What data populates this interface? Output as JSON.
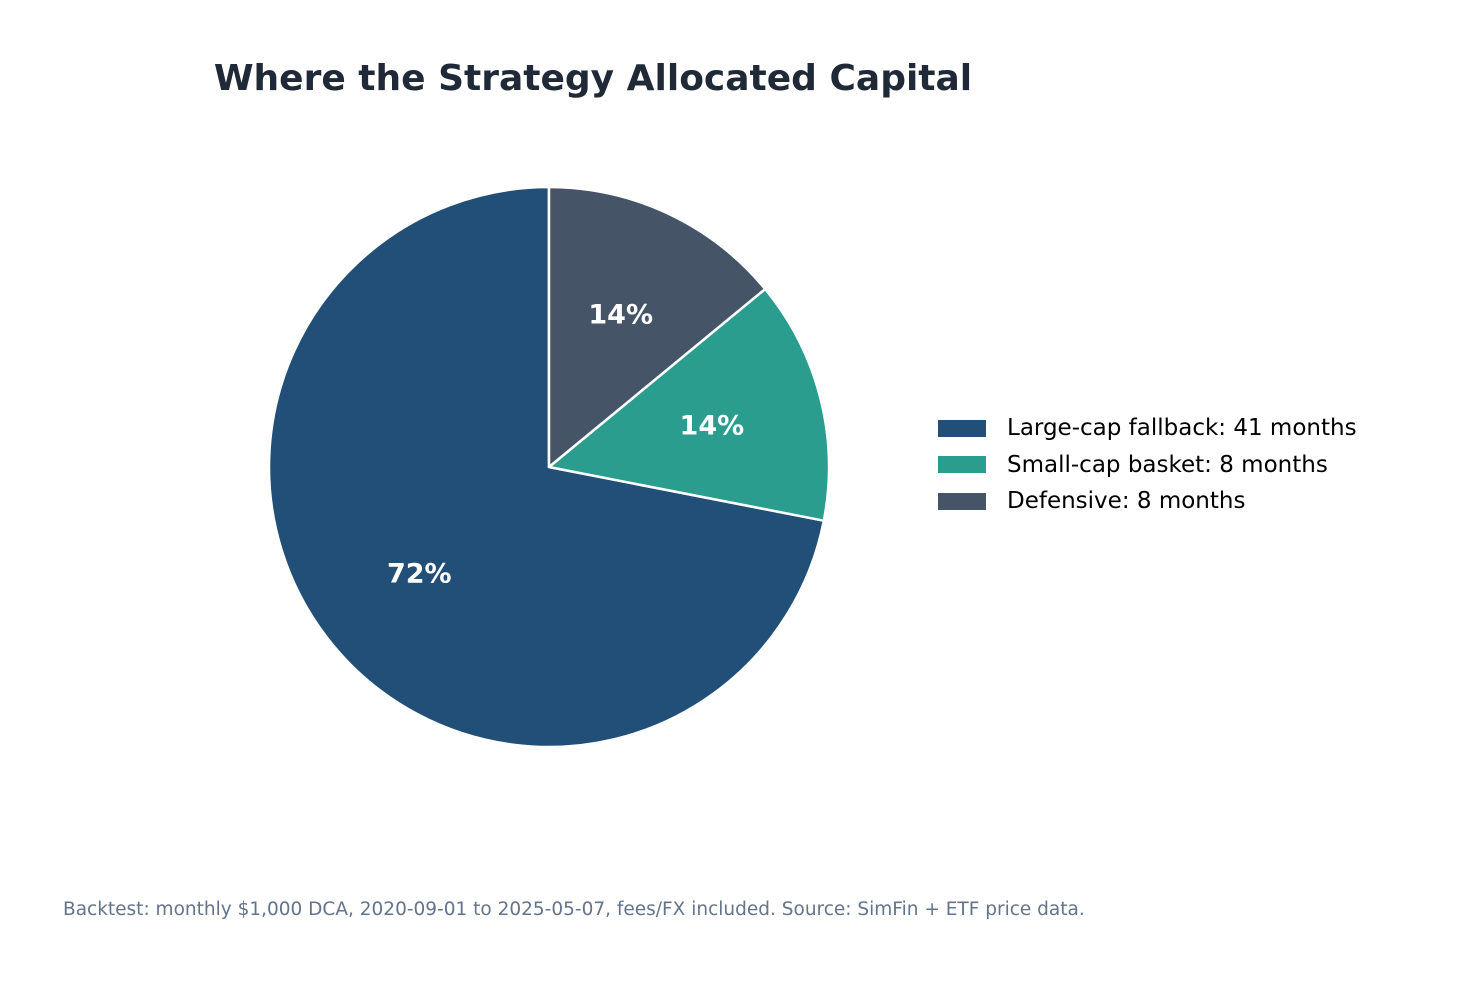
{
  "chart_data": {
    "type": "pie",
    "title": "Where the Strategy Allocated Capital",
    "slices": [
      {
        "label": "Large-cap fallback: 41 months",
        "value": 41,
        "percent_label": "72%",
        "color": "#214f77"
      },
      {
        "label": "Small-cap basket: 8 months",
        "value": 8,
        "percent_label": "14%",
        "color": "#2a9d8f"
      },
      {
        "label": "Defensive: 8 months",
        "value": 8,
        "percent_label": "14%",
        "color": "#465467"
      }
    ],
    "start_angle_deg": 90,
    "direction": "counterclockwise",
    "legend_position": "right",
    "edge_color": "#ffffff"
  },
  "footnote": "Backtest: monthly $1,000 DCA, 2020-09-01 to 2025-05-07, fees/FX included. Source: SimFin + ETF price data."
}
